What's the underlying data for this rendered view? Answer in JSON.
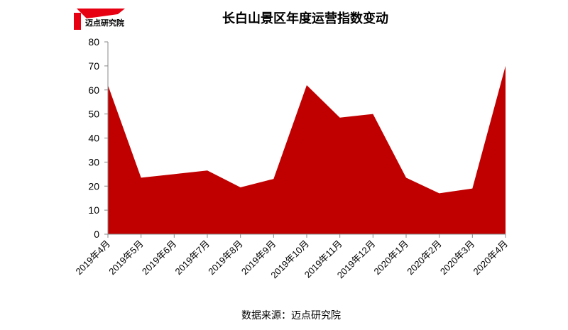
{
  "logo": "迈点研究院",
  "chart_data": {
    "type": "area",
    "title": "长白山景区年度运营指数变动",
    "source": "数据来源：迈点研究院",
    "categories": [
      "2019年4月",
      "2019年5月",
      "2019年6月",
      "2019年7月",
      "2019年8月",
      "2019年9月",
      "2019年10月",
      "2019年11月",
      "2019年12月",
      "2020年1月",
      "2020年2月",
      "2020年3月",
      "2020年4月"
    ],
    "values": [
      62,
      23.5,
      25,
      26.5,
      19.5,
      23,
      62,
      48.5,
      50,
      23.5,
      17,
      19,
      70
    ],
    "color": "#c00000",
    "ylim": [
      0,
      80
    ],
    "yticks": [
      0,
      10,
      20,
      30,
      40,
      50,
      60,
      70,
      80
    ],
    "grid": false
  }
}
